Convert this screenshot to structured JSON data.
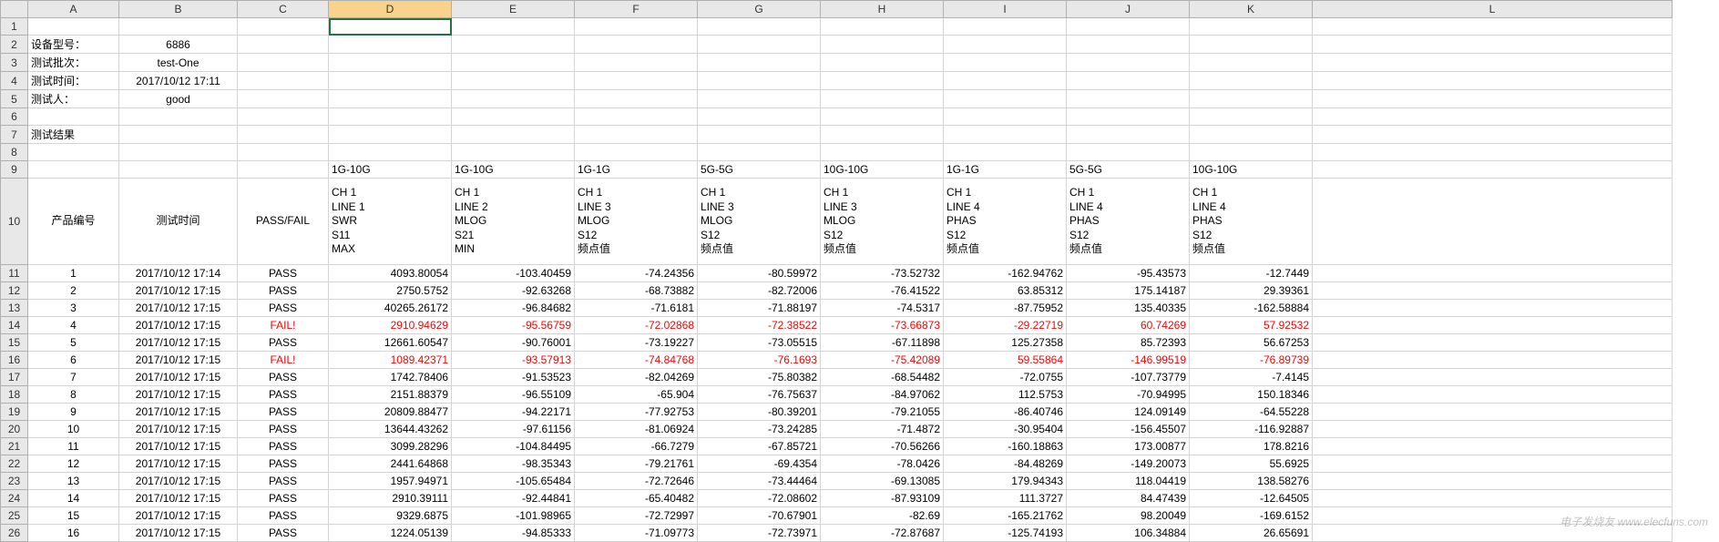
{
  "columns": [
    "A",
    "B",
    "C",
    "D",
    "E",
    "F",
    "G",
    "H",
    "I",
    "J",
    "K",
    "L"
  ],
  "selected_column": "D",
  "row_header_width": 30,
  "meta": {
    "r2a": "设备型号：",
    "r2b": "6886",
    "r3a": "测试批次：",
    "r3b": "test-One",
    "r4a": "测试时间：",
    "r4b": "2017/10/12 17:11",
    "r5a": "测试人：",
    "r5b": "good",
    "r7a": "测试结果"
  },
  "hdr9": {
    "d": "1G-10G",
    "e": "1G-10G",
    "f": "1G-1G",
    "g": "5G-5G",
    "h": "10G-10G",
    "i": "1G-1G",
    "j": "5G-5G",
    "k": "10G-10G"
  },
  "hdr10": {
    "a": "产品编号",
    "b": "测试时间",
    "c": "PASS/FAIL",
    "d": "CH 1\nLINE 1\nSWR\nS11\nMAX",
    "e": "CH 1\nLINE 2\nMLOG\nS21\nMIN",
    "f": "CH 1\nLINE 3\nMLOG\nS12\n频点值",
    "g": "CH 1\nLINE 3\nMLOG\nS12\n频点值",
    "h": "CH 1\nLINE 3\nMLOG\nS12\n频点值",
    "i": "CH 1\nLINE 4\nPHAS\nS12\n频点值",
    "j": "CH 1\nLINE 4\nPHAS\nS12\n频点值",
    "k": "CH 1\nLINE 4\nPHAS\nS12\n频点值"
  },
  "data": [
    {
      "n": "1",
      "t": "2017/10/12 17:14",
      "pf": "PASS",
      "d": "4093.80054",
      "e": "-103.40459",
      "f": "-74.24356",
      "g": "-80.59972",
      "h": "-73.52732",
      "i": "-162.94762",
      "j": "-95.43573",
      "k": "-12.7449"
    },
    {
      "n": "2",
      "t": "2017/10/12 17:15",
      "pf": "PASS",
      "d": "2750.5752",
      "e": "-92.63268",
      "f": "-68.73882",
      "g": "-82.72006",
      "h": "-76.41522",
      "i": "63.85312",
      "j": "175.14187",
      "k": "29.39361"
    },
    {
      "n": "3",
      "t": "2017/10/12 17:15",
      "pf": "PASS",
      "d": "40265.26172",
      "e": "-96.84682",
      "f": "-71.6181",
      "g": "-71.88197",
      "h": "-74.5317",
      "i": "-87.75952",
      "j": "135.40335",
      "k": "-162.58884"
    },
    {
      "n": "4",
      "t": "2017/10/12 17:15",
      "pf": "FAIL!",
      "fail": true,
      "d": "2910.94629",
      "e": "-95.56759",
      "f": "-72.02868",
      "g": "-72.38522",
      "h": "-73.66873",
      "i": "-29.22719",
      "j": "60.74269",
      "k": "57.92532"
    },
    {
      "n": "5",
      "t": "2017/10/12 17:15",
      "pf": "PASS",
      "d": "12661.60547",
      "e": "-90.76001",
      "f": "-73.19227",
      "g": "-73.05515",
      "h": "-67.11898",
      "i": "125.27358",
      "j": "85.72393",
      "k": "56.67253"
    },
    {
      "n": "6",
      "t": "2017/10/12 17:15",
      "pf": "FAIL!",
      "fail": true,
      "d": "1089.42371",
      "e": "-93.57913",
      "f": "-74.84768",
      "g": "-76.1693",
      "h": "-75.42089",
      "i": "59.55864",
      "j": "-146.99519",
      "k": "-76.89739"
    },
    {
      "n": "7",
      "t": "2017/10/12 17:15",
      "pf": "PASS",
      "d": "1742.78406",
      "e": "-91.53523",
      "f": "-82.04269",
      "g": "-75.80382",
      "h": "-68.54482",
      "i": "-72.0755",
      "j": "-107.73779",
      "k": "-7.4145"
    },
    {
      "n": "8",
      "t": "2017/10/12 17:15",
      "pf": "PASS",
      "d": "2151.88379",
      "e": "-96.55109",
      "f": "-65.904",
      "g": "-76.75637",
      "h": "-84.97062",
      "i": "112.5753",
      "j": "-70.94995",
      "k": "150.18346"
    },
    {
      "n": "9",
      "t": "2017/10/12 17:15",
      "pf": "PASS",
      "d": "20809.88477",
      "e": "-94.22171",
      "f": "-77.92753",
      "g": "-80.39201",
      "h": "-79.21055",
      "i": "-86.40746",
      "j": "124.09149",
      "k": "-64.55228"
    },
    {
      "n": "10",
      "t": "2017/10/12 17:15",
      "pf": "PASS",
      "d": "13644.43262",
      "e": "-97.61156",
      "f": "-81.06924",
      "g": "-73.24285",
      "h": "-71.4872",
      "i": "-30.95404",
      "j": "-156.45507",
      "k": "-116.92887"
    },
    {
      "n": "11",
      "t": "2017/10/12 17:15",
      "pf": "PASS",
      "d": "3099.28296",
      "e": "-104.84495",
      "f": "-66.7279",
      "g": "-67.85721",
      "h": "-70.56266",
      "i": "-160.18863",
      "j": "173.00877",
      "k": "178.8216"
    },
    {
      "n": "12",
      "t": "2017/10/12 17:15",
      "pf": "PASS",
      "d": "2441.64868",
      "e": "-98.35343",
      "f": "-79.21761",
      "g": "-69.4354",
      "h": "-78.0426",
      "i": "-84.48269",
      "j": "-149.20073",
      "k": "55.6925"
    },
    {
      "n": "13",
      "t": "2017/10/12 17:15",
      "pf": "PASS",
      "d": "1957.94971",
      "e": "-105.65484",
      "f": "-72.72646",
      "g": "-73.44464",
      "h": "-69.13085",
      "i": "179.94343",
      "j": "118.04419",
      "k": "138.58276"
    },
    {
      "n": "14",
      "t": "2017/10/12 17:15",
      "pf": "PASS",
      "d": "2910.39111",
      "e": "-92.44841",
      "f": "-65.40482",
      "g": "-72.08602",
      "h": "-87.93109",
      "i": "111.3727",
      "j": "84.47439",
      "k": "-12.64505"
    },
    {
      "n": "15",
      "t": "2017/10/12 17:15",
      "pf": "PASS",
      "d": "9329.6875",
      "e": "-101.98965",
      "f": "-72.72997",
      "g": "-70.67901",
      "h": "-82.69",
      "i": "-165.21762",
      "j": "98.20049",
      "k": "-169.6152"
    },
    {
      "n": "16",
      "t": "2017/10/12 17:15",
      "pf": "PASS",
      "d": "1224.05139",
      "e": "-94.85333",
      "f": "-71.09773",
      "g": "-72.73971",
      "h": "-72.87687",
      "i": "-125.74193",
      "j": "106.34884",
      "k": "26.65691"
    }
  ],
  "watermark": "电子发烧友 www.elecfuns.com",
  "colors": {
    "grid": "#d4d4d4",
    "header_bg": "#e8e8e8",
    "header_border": "#b0b0b0",
    "selected_col_bg": "#f9d38c",
    "selected_cell_outline": "#217346",
    "fail_text": "#ff0000",
    "text": "#000000",
    "bg": "#ffffff"
  }
}
